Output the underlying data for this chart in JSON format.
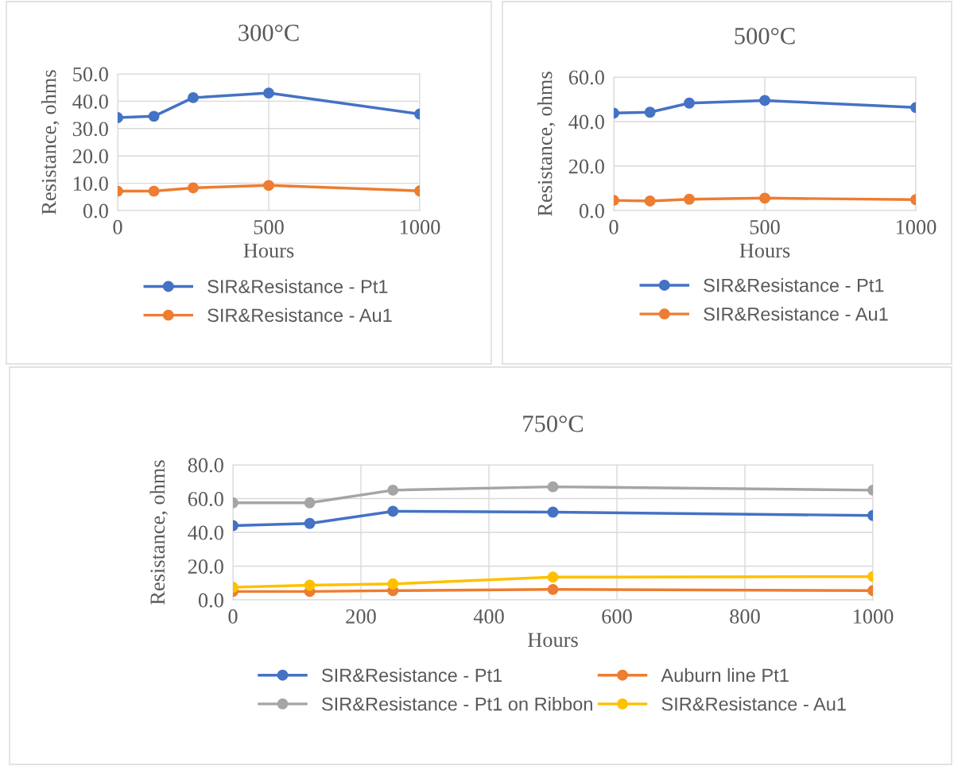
{
  "chart_data": [
    {
      "type": "line",
      "title": "300°C",
      "xlabel": "Hours",
      "ylabel": "Resistance, ohms",
      "x": [
        0,
        120,
        250,
        500,
        1000
      ],
      "xlim": [
        0,
        1000
      ],
      "xticks": [
        0,
        500,
        1000
      ],
      "ylim": [
        0,
        50
      ],
      "yticks": [
        {
          "value": 0,
          "label": "0.0"
        },
        {
          "value": 10,
          "label": "10.0"
        },
        {
          "value": 20,
          "label": "20.0"
        },
        {
          "value": 30,
          "label": "30.0"
        },
        {
          "value": 40,
          "label": "40.0"
        },
        {
          "value": 50,
          "label": "50.0"
        }
      ],
      "grid": true,
      "legend": "bottom",
      "marker": "circle",
      "series": [
        {
          "name": "SIR&Resistance - Pt1",
          "color": "#4472c4",
          "values": [
            34.0,
            34.5,
            41.3,
            43.0,
            35.3
          ]
        },
        {
          "name": "SIR&Resistance - Au1",
          "color": "#ed7d31",
          "values": [
            7.1,
            7.1,
            8.3,
            9.2,
            7.2
          ]
        }
      ]
    },
    {
      "type": "line",
      "title": "500°C",
      "xlabel": "Hours",
      "ylabel": "Resistance, ohms",
      "x": [
        0,
        120,
        250,
        500,
        1000
      ],
      "xlim": [
        0,
        1000
      ],
      "xticks": [
        0,
        500,
        1000
      ],
      "ylim": [
        0,
        60
      ],
      "yticks": [
        {
          "value": 0,
          "label": "0.0"
        },
        {
          "value": 20,
          "label": "20.0"
        },
        {
          "value": 40,
          "label": "40.0"
        },
        {
          "value": 60,
          "label": "60.0"
        }
      ],
      "grid": true,
      "legend": "bottom",
      "marker": "circle",
      "series": [
        {
          "name": "SIR&Resistance - Pt1",
          "color": "#4472c4",
          "values": [
            43.8,
            44.2,
            48.3,
            49.5,
            46.3
          ]
        },
        {
          "name": "SIR&Resistance - Au1",
          "color": "#ed7d31",
          "values": [
            4.6,
            4.3,
            5.1,
            5.6,
            4.9
          ]
        }
      ]
    },
    {
      "type": "line",
      "title": "750°C",
      "xlabel": "Hours",
      "ylabel": "Resistance, ohms",
      "x": [
        0,
        120,
        250,
        500,
        1000
      ],
      "xlim": [
        0,
        1000
      ],
      "xticks": [
        0,
        200,
        400,
        600,
        800,
        1000
      ],
      "ylim": [
        0,
        80
      ],
      "yticks": [
        {
          "value": 0,
          "label": "0.0"
        },
        {
          "value": 20,
          "label": "20.0"
        },
        {
          "value": 40,
          "label": "40.0"
        },
        {
          "value": 60,
          "label": "60.0"
        },
        {
          "value": 80,
          "label": "80.0"
        }
      ],
      "grid": true,
      "legend": "bottom",
      "marker": "circle",
      "series": [
        {
          "name": "SIR&Resistance - Pt1",
          "color": "#4472c4",
          "values": [
            44.0,
            45.3,
            52.5,
            52.0,
            50.0
          ]
        },
        {
          "name": "Auburn line Pt1",
          "color": "#ed7d31",
          "values": [
            5.0,
            5.0,
            5.5,
            6.2,
            5.5
          ]
        },
        {
          "name": "SIR&Resistance - Pt1 on Ribbon",
          "color": "#a5a5a5",
          "values": [
            57.5,
            57.5,
            65.0,
            67.0,
            65.0
          ]
        },
        {
          "name": "SIR&Resistance - Au1",
          "color": "#ffc000",
          "values": [
            7.5,
            8.7,
            9.5,
            13.5,
            13.8
          ]
        }
      ]
    }
  ]
}
